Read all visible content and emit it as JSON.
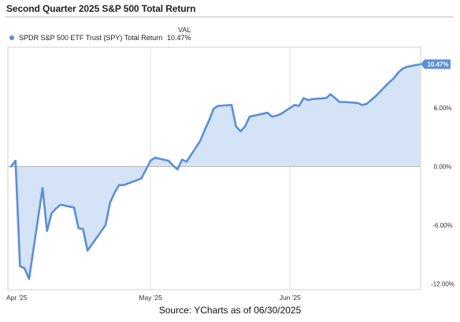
{
  "header": {
    "title": "Second Quarter 2025 S&P 500 Total Return",
    "legend_value_header": "VAL"
  },
  "legend": [
    {
      "label": "SPDR S&P 500 ETF Trust (SPY) Total Return",
      "value": "10.47%",
      "color": "#5b8fd6"
    }
  ],
  "footer": {
    "source": "Source: YCharts as of 06/30/2025"
  },
  "chart_data": {
    "type": "area",
    "series": [
      {
        "name": "SPDR S&P 500 ETF Trust (SPY) Total Return",
        "color": "#5b8fd6",
        "fill": "#d4e3f6",
        "x": [
          "2025-03-31",
          "2025-04-01",
          "2025-04-02",
          "2025-04-03",
          "2025-04-04",
          "2025-04-07",
          "2025-04-08",
          "2025-04-09",
          "2025-04-10",
          "2025-04-11",
          "2025-04-14",
          "2025-04-15",
          "2025-04-16",
          "2025-04-17",
          "2025-04-21",
          "2025-04-22",
          "2025-04-23",
          "2025-04-24",
          "2025-04-25",
          "2025-04-28",
          "2025-04-29",
          "2025-04-30",
          "2025-05-01",
          "2025-05-02",
          "2025-05-05",
          "2025-05-06",
          "2025-05-07",
          "2025-05-08",
          "2025-05-09",
          "2025-05-12",
          "2025-05-13",
          "2025-05-14",
          "2025-05-15",
          "2025-05-16",
          "2025-05-19",
          "2025-05-20",
          "2025-05-21",
          "2025-05-22",
          "2025-05-23",
          "2025-05-27",
          "2025-05-28",
          "2025-05-29",
          "2025-05-30",
          "2025-06-02",
          "2025-06-03",
          "2025-06-04",
          "2025-06-05",
          "2025-06-06",
          "2025-06-09",
          "2025-06-10",
          "2025-06-11",
          "2025-06-12",
          "2025-06-13",
          "2025-06-16",
          "2025-06-17",
          "2025-06-18",
          "2025-06-20",
          "2025-06-23",
          "2025-06-24",
          "2025-06-25",
          "2025-06-26",
          "2025-06-27",
          "2025-06-30"
        ],
        "values": [
          0.0,
          0.6,
          -10.2,
          -10.4,
          -11.5,
          -2.2,
          -6.6,
          -4.8,
          -4.3,
          -3.9,
          -4.2,
          -6.3,
          -6.4,
          -8.6,
          -6.0,
          -3.7,
          -2.7,
          -1.9,
          -1.9,
          -1.4,
          -1.2,
          -0.3,
          0.6,
          0.9,
          0.6,
          0.1,
          -0.3,
          0.7,
          0.5,
          2.6,
          3.7,
          4.7,
          5.9,
          6.2,
          6.3,
          4.1,
          3.6,
          4.1,
          5.1,
          5.5,
          5.1,
          5.2,
          5.4,
          6.3,
          6.2,
          7.0,
          6.8,
          6.9,
          7.0,
          7.4,
          7.0,
          6.6,
          6.6,
          6.5,
          6.3,
          6.4,
          7.2,
          8.6,
          9.0,
          9.6,
          10.0,
          10.2,
          10.47
        ]
      }
    ],
    "y_ticks": [
      "6.00%",
      "0.00%",
      "-6.00%",
      "-12.00%"
    ],
    "y_tick_values": [
      6,
      0,
      -6,
      -12
    ],
    "x_ticks": [
      "Apr '25",
      "May '25",
      "Jun '25"
    ],
    "x_tick_dates": [
      "2025-04-01",
      "2025-05-01",
      "2025-06-01"
    ],
    "x_range": [
      "2025-03-31",
      "2025-06-30"
    ],
    "ylim": [
      -12.6,
      12.2
    ],
    "last_value_label": "10.47%",
    "legend_position": "top-left",
    "grid": "vertical month lines"
  }
}
